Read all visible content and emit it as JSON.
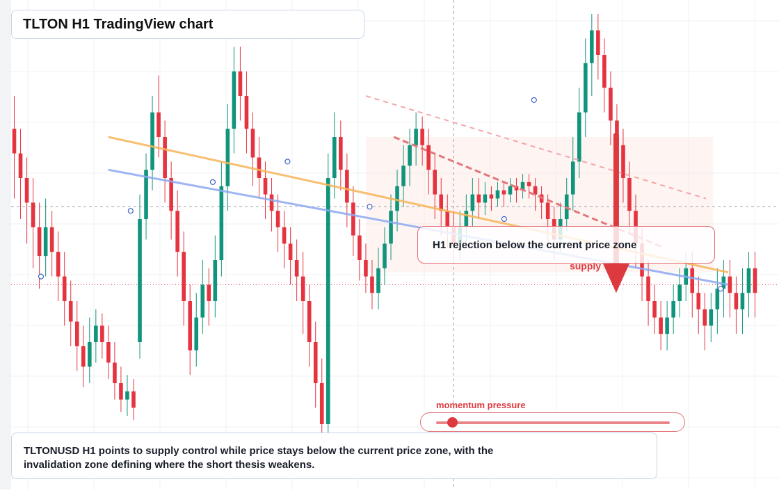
{
  "title": "TLTON H1 TradingView chart",
  "callout": "H1 rejection below the current price zone",
  "supply_label": "supply",
  "momentum_label": "momentum pressure",
  "momentum_level": 0.07,
  "caption": "TLTONUSD H1 points to supply control while price stays below the current price zone, with the invalidation zone defining where the short thesis weakens.",
  "colors": {
    "up": "#10947c",
    "down": "#e5333f",
    "trend_orange": "#f7b55a",
    "trend_blue": "#8ea9f2",
    "accent_red": "#dd3a3f"
  },
  "chart_data": {
    "type": "candlestick",
    "symbol": "TLTONUSD",
    "timeframe": "H1",
    "title": "TLTON H1 TradingView chart",
    "y_range": [
      0,
      100
    ],
    "candles": [
      {
        "o": 72,
        "c": 66,
        "h": 80,
        "l": 55
      },
      {
        "o": 66,
        "c": 60,
        "h": 72,
        "l": 50
      },
      {
        "o": 60,
        "c": 54,
        "h": 65,
        "l": 44
      },
      {
        "o": 54,
        "c": 48,
        "h": 60,
        "l": 38
      },
      {
        "o": 48,
        "c": 41,
        "h": 54,
        "l": 33
      },
      {
        "o": 41,
        "c": 48,
        "h": 55,
        "l": 36
      },
      {
        "o": 48,
        "c": 42,
        "h": 52,
        "l": 36
      },
      {
        "o": 42,
        "c": 36,
        "h": 47,
        "l": 30
      },
      {
        "o": 36,
        "c": 30,
        "h": 42,
        "l": 24
      },
      {
        "o": 30,
        "c": 25,
        "h": 35,
        "l": 19
      },
      {
        "o": 25,
        "c": 19,
        "h": 30,
        "l": 13
      },
      {
        "o": 19,
        "c": 14,
        "h": 24,
        "l": 9
      },
      {
        "o": 14,
        "c": 20,
        "h": 26,
        "l": 10
      },
      {
        "o": 20,
        "c": 24,
        "h": 28,
        "l": 15
      },
      {
        "o": 24,
        "c": 20,
        "h": 27,
        "l": 16
      },
      {
        "o": 20,
        "c": 15,
        "h": 24,
        "l": 11
      },
      {
        "o": 15,
        "c": 10,
        "h": 20,
        "l": 6
      },
      {
        "o": 10,
        "c": 6,
        "h": 14,
        "l": 3
      },
      {
        "o": 6,
        "c": 8,
        "h": 12,
        "l": 2
      },
      {
        "o": 8,
        "c": 4,
        "h": 11,
        "l": 1
      },
      {
        "o": 20,
        "c": 50,
        "h": 56,
        "l": 16
      },
      {
        "o": 50,
        "c": 62,
        "h": 66,
        "l": 45
      },
      {
        "o": 62,
        "c": 76,
        "h": 80,
        "l": 57
      },
      {
        "o": 76,
        "c": 70,
        "h": 85,
        "l": 65
      },
      {
        "o": 70,
        "c": 60,
        "h": 74,
        "l": 54
      },
      {
        "o": 60,
        "c": 52,
        "h": 64,
        "l": 45
      },
      {
        "o": 52,
        "c": 42,
        "h": 57,
        "l": 36
      },
      {
        "o": 42,
        "c": 30,
        "h": 47,
        "l": 24
      },
      {
        "o": 30,
        "c": 18,
        "h": 34,
        "l": 12
      },
      {
        "o": 18,
        "c": 26,
        "h": 32,
        "l": 14
      },
      {
        "o": 26,
        "c": 34,
        "h": 40,
        "l": 22
      },
      {
        "o": 34,
        "c": 30,
        "h": 38,
        "l": 24
      },
      {
        "o": 30,
        "c": 40,
        "h": 46,
        "l": 26
      },
      {
        "o": 40,
        "c": 58,
        "h": 64,
        "l": 36
      },
      {
        "o": 58,
        "c": 72,
        "h": 78,
        "l": 52
      },
      {
        "o": 72,
        "c": 86,
        "h": 92,
        "l": 66
      },
      {
        "o": 86,
        "c": 80,
        "h": 92,
        "l": 74
      },
      {
        "o": 80,
        "c": 72,
        "h": 86,
        "l": 66
      },
      {
        "o": 72,
        "c": 65,
        "h": 76,
        "l": 58
      },
      {
        "o": 65,
        "c": 60,
        "h": 70,
        "l": 55
      },
      {
        "o": 60,
        "c": 56,
        "h": 64,
        "l": 50
      },
      {
        "o": 56,
        "c": 52,
        "h": 60,
        "l": 47
      },
      {
        "o": 52,
        "c": 48,
        "h": 56,
        "l": 42
      },
      {
        "o": 48,
        "c": 44,
        "h": 52,
        "l": 38
      },
      {
        "o": 44,
        "c": 40,
        "h": 48,
        "l": 34
      },
      {
        "o": 40,
        "c": 36,
        "h": 45,
        "l": 30
      },
      {
        "o": 36,
        "c": 30,
        "h": 42,
        "l": 22
      },
      {
        "o": 30,
        "c": 20,
        "h": 34,
        "l": 14
      },
      {
        "o": 20,
        "c": 10,
        "h": 25,
        "l": 4
      },
      {
        "o": 10,
        "c": 0,
        "h": 16,
        "l": -4
      },
      {
        "o": 0,
        "c": 60,
        "h": 66,
        "l": -4
      },
      {
        "o": 60,
        "c": 70,
        "h": 76,
        "l": 55
      },
      {
        "o": 70,
        "c": 62,
        "h": 74,
        "l": 57
      },
      {
        "o": 62,
        "c": 54,
        "h": 66,
        "l": 48
      },
      {
        "o": 54,
        "c": 46,
        "h": 58,
        "l": 41
      },
      {
        "o": 46,
        "c": 40,
        "h": 50,
        "l": 35
      },
      {
        "o": 40,
        "c": 36,
        "h": 44,
        "l": 32
      },
      {
        "o": 36,
        "c": 32,
        "h": 40,
        "l": 28
      },
      {
        "o": 32,
        "c": 38,
        "h": 43,
        "l": 28
      },
      {
        "o": 38,
        "c": 44,
        "h": 48,
        "l": 34
      },
      {
        "o": 44,
        "c": 52,
        "h": 56,
        "l": 40
      },
      {
        "o": 52,
        "c": 58,
        "h": 62,
        "l": 47
      },
      {
        "o": 58,
        "c": 63,
        "h": 68,
        "l": 53
      },
      {
        "o": 63,
        "c": 68,
        "h": 72,
        "l": 58
      },
      {
        "o": 68,
        "c": 72,
        "h": 76,
        "l": 63
      },
      {
        "o": 72,
        "c": 68,
        "h": 75,
        "l": 63
      },
      {
        "o": 68,
        "c": 62,
        "h": 72,
        "l": 56
      },
      {
        "o": 62,
        "c": 56,
        "h": 66,
        "l": 50
      },
      {
        "o": 56,
        "c": 52,
        "h": 60,
        "l": 46
      },
      {
        "o": 52,
        "c": 48,
        "h": 56,
        "l": 43
      },
      {
        "o": 48,
        "c": 44,
        "h": 52,
        "l": 40
      },
      {
        "o": 44,
        "c": 48,
        "h": 52,
        "l": 40
      },
      {
        "o": 48,
        "c": 52,
        "h": 56,
        "l": 44
      },
      {
        "o": 52,
        "c": 56,
        "h": 60,
        "l": 48
      },
      {
        "o": 56,
        "c": 54,
        "h": 60,
        "l": 50
      },
      {
        "o": 54,
        "c": 56,
        "h": 59,
        "l": 51
      },
      {
        "o": 56,
        "c": 55,
        "h": 58,
        "l": 52
      },
      {
        "o": 55,
        "c": 57,
        "h": 59,
        "l": 53
      },
      {
        "o": 57,
        "c": 56,
        "h": 59,
        "l": 53
      },
      {
        "o": 56,
        "c": 58,
        "h": 60,
        "l": 54
      },
      {
        "o": 58,
        "c": 57,
        "h": 60,
        "l": 54
      },
      {
        "o": 57,
        "c": 59,
        "h": 61,
        "l": 55
      },
      {
        "o": 59,
        "c": 58,
        "h": 61,
        "l": 55
      },
      {
        "o": 58,
        "c": 56,
        "h": 60,
        "l": 52
      },
      {
        "o": 56,
        "c": 54,
        "h": 58,
        "l": 50
      },
      {
        "o": 54,
        "c": 50,
        "h": 56,
        "l": 44
      },
      {
        "o": 50,
        "c": 45,
        "h": 53,
        "l": 40
      },
      {
        "o": 45,
        "c": 50,
        "h": 54,
        "l": 42
      },
      {
        "o": 50,
        "c": 56,
        "h": 60,
        "l": 47
      },
      {
        "o": 56,
        "c": 64,
        "h": 70,
        "l": 52
      },
      {
        "o": 64,
        "c": 76,
        "h": 82,
        "l": 60
      },
      {
        "o": 76,
        "c": 88,
        "h": 94,
        "l": 70
      },
      {
        "o": 88,
        "c": 96,
        "h": 100,
        "l": 80
      },
      {
        "o": 96,
        "c": 90,
        "h": 100,
        "l": 84
      },
      {
        "o": 90,
        "c": 82,
        "h": 94,
        "l": 76
      },
      {
        "o": 82,
        "c": 74,
        "h": 86,
        "l": 68
      },
      {
        "o": 74,
        "c": 68,
        "h": 78,
        "l": 62
      },
      {
        "o": 68,
        "c": 60,
        "h": 72,
        "l": 54
      },
      {
        "o": 60,
        "c": 52,
        "h": 64,
        "l": 46
      },
      {
        "o": 52,
        "c": 44,
        "h": 56,
        "l": 38
      },
      {
        "o": 44,
        "c": 36,
        "h": 48,
        "l": 30
      },
      {
        "o": 36,
        "c": 30,
        "h": 40,
        "l": 24
      },
      {
        "o": 30,
        "c": 26,
        "h": 34,
        "l": 22
      },
      {
        "o": 26,
        "c": 22,
        "h": 30,
        "l": 18
      },
      {
        "o": 22,
        "c": 26,
        "h": 30,
        "l": 18
      },
      {
        "o": 26,
        "c": 30,
        "h": 34,
        "l": 22
      },
      {
        "o": 30,
        "c": 34,
        "h": 38,
        "l": 26
      },
      {
        "o": 34,
        "c": 38,
        "h": 42,
        "l": 30
      },
      {
        "o": 38,
        "c": 32,
        "h": 42,
        "l": 26
      },
      {
        "o": 32,
        "c": 28,
        "h": 36,
        "l": 22
      },
      {
        "o": 28,
        "c": 24,
        "h": 32,
        "l": 18
      },
      {
        "o": 24,
        "c": 28,
        "h": 32,
        "l": 20
      },
      {
        "o": 28,
        "c": 33,
        "h": 38,
        "l": 22
      },
      {
        "o": 33,
        "c": 36,
        "h": 40,
        "l": 26
      },
      {
        "o": 36,
        "c": 32,
        "h": 40,
        "l": 26
      },
      {
        "o": 32,
        "c": 28,
        "h": 36,
        "l": 22
      },
      {
        "o": 28,
        "c": 32,
        "h": 38,
        "l": 22
      },
      {
        "o": 32,
        "c": 38,
        "h": 42,
        "l": 26
      },
      {
        "o": 38,
        "c": 32,
        "h": 42,
        "l": 26
      }
    ],
    "overlays": {
      "trendline_orange": {
        "x": [
          0.13,
          0.96
        ],
        "y": [
          70,
          37
        ]
      },
      "trendline_blue": {
        "x": [
          0.13,
          0.96
        ],
        "y": [
          62,
          34
        ]
      },
      "dashed_resistance": {
        "x": [
          0.475,
          0.93
        ],
        "y": [
          80,
          55
        ]
      },
      "supply_zone": {
        "x": [
          0.475,
          0.94
        ],
        "y": [
          37,
          70
        ]
      },
      "sell_arrow": {
        "x": 0.81,
        "y_from": 71,
        "y_to": 32
      },
      "current_price_level": 53,
      "lower_dotted_level": 34
    }
  }
}
